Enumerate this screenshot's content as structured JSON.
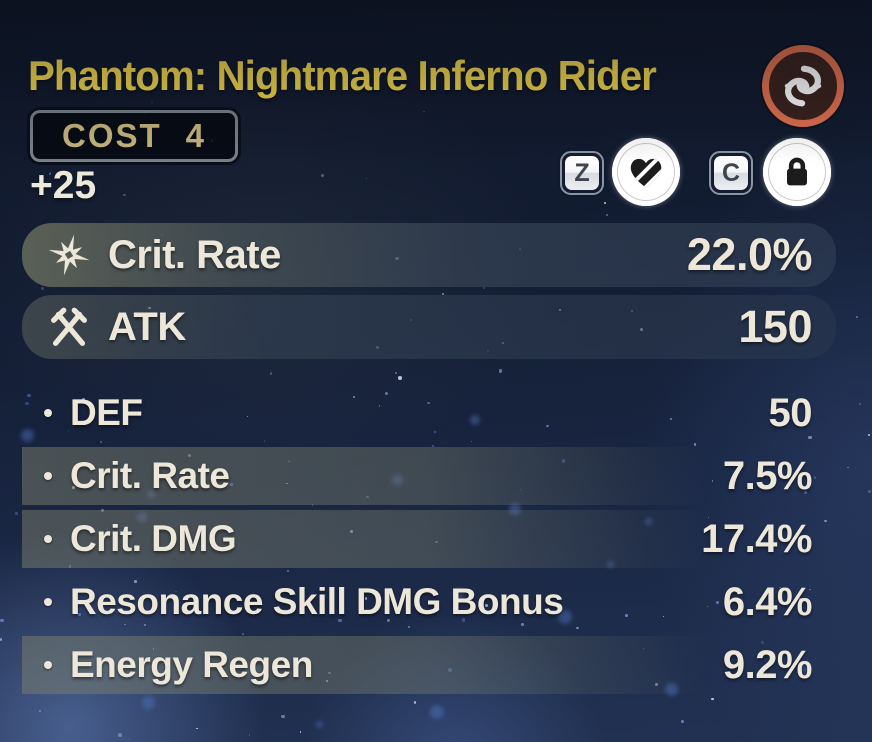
{
  "header": {
    "title": "Phantom: Nightmare Inferno Rider",
    "cost_label": "COST",
    "cost_value": "4",
    "level": "+25",
    "element": "fusion"
  },
  "toolbar": {
    "key_z": "Z",
    "key_c": "C",
    "heart_icon": "heart-slashed-icon",
    "lock_icon": "lock-icon"
  },
  "main_stats": [
    {
      "icon": "crit-rate-icon",
      "label": "Crit. Rate",
      "value": "22.0%"
    },
    {
      "icon": "atk-swords-icon",
      "label": "ATK",
      "value": "150"
    }
  ],
  "sub_stats": [
    {
      "label": "DEF",
      "value": "50",
      "highlighted": false
    },
    {
      "label": "Crit. Rate",
      "value": "7.5%",
      "highlighted": true
    },
    {
      "label": "Crit. DMG",
      "value": "17.4%",
      "highlighted": true
    },
    {
      "label": "Resonance Skill DMG Bonus",
      "value": "6.4%",
      "highlighted": false
    },
    {
      "label": "Energy Regen",
      "value": "9.2%",
      "highlighted": true
    }
  ],
  "colors": {
    "title": "#f2d64b",
    "cost_text": "#c8b67c",
    "stat_text": "#ece7d8",
    "element_ring": "#e2704e",
    "highlight_band": "#80846e"
  }
}
